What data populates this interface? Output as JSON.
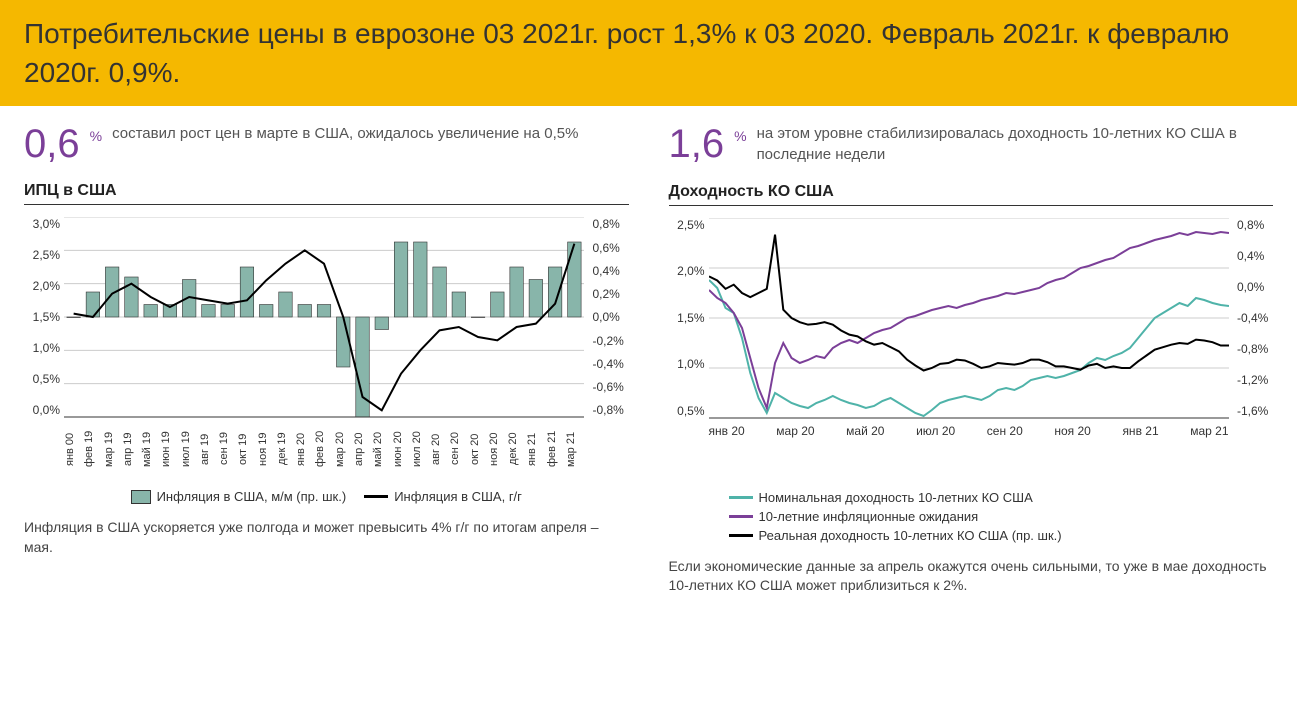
{
  "header": "Потребительские цены в еврозоне 03 2021г. рост 1,3% к 03 2020. Февраль 2021г. к февралю 2020г. 0,9%.",
  "left": {
    "stat_num": "0,6",
    "stat_pct": "%",
    "stat_text": "составил рост цен в марте в США, ожидалось увеличение на 0,5%",
    "chart_title": "ИПЦ в США",
    "legend1": "Инфляция в США, м/м (пр. шк.)",
    "legend2": "Инфляция в США, г/г",
    "footnote": "Инфляция в США ускоряется уже полгода и может превысить 4% г/г по итогам апреля – мая.",
    "chart": {
      "type": "bar+line",
      "bar_color": "#88b5aa",
      "bar_border": "#333333",
      "line_color": "#000000",
      "line_width": 2,
      "grid_color": "#cccccc",
      "xlabels": [
        "янв 00",
        "фев 19",
        "мар 19",
        "апр 19",
        "май 19",
        "июн 19",
        "июл 19",
        "авг 19",
        "сен 19",
        "окт 19",
        "ноя 19",
        "дек 19",
        "янв 20",
        "фев 20",
        "мар 20",
        "апр 20",
        "май 20",
        "июн 20",
        "июл 20",
        "авг 20",
        "сен 20",
        "окт 20",
        "ноя 20",
        "дек 20",
        "янв 21",
        "фев 21",
        "мар 21"
      ],
      "left_ticks": [
        "3,0%",
        "2,5%",
        "2,0%",
        "1,5%",
        "1,0%",
        "0,5%",
        "0,0%"
      ],
      "left_min": 0.0,
      "left_max": 3.0,
      "right_ticks": [
        "0,8%",
        "0,6%",
        "0,4%",
        "0,2%",
        "0,0%",
        "-0,2%",
        "-0,4%",
        "-0,6%",
        "-0,8%"
      ],
      "right_min": -0.8,
      "right_max": 0.8,
      "bars": [
        0.0,
        0.2,
        0.4,
        0.32,
        0.1,
        0.1,
        0.3,
        0.1,
        0.1,
        0.4,
        0.1,
        0.2,
        0.1,
        0.1,
        -0.4,
        -0.8,
        -0.1,
        0.6,
        0.6,
        0.4,
        0.2,
        0.0,
        0.2,
        0.4,
        0.3,
        0.4,
        0.6
      ],
      "line": [
        1.55,
        1.5,
        1.85,
        2.0,
        1.8,
        1.65,
        1.8,
        1.75,
        1.7,
        1.75,
        2.05,
        2.3,
        2.5,
        2.3,
        1.5,
        0.3,
        0.1,
        0.65,
        1.0,
        1.3,
        1.35,
        1.2,
        1.15,
        1.35,
        1.4,
        1.7,
        2.6
      ]
    }
  },
  "right": {
    "stat_num": "1,6",
    "stat_pct": "%",
    "stat_text": "на этом уровне стабилизировалась доходность 10-летних КО США в последние недели",
    "chart_title": "Доходность КО США",
    "legend1": "Номинальная доходность 10-летних КО США",
    "legend2": "10-летние инфляционные ожидания",
    "legend3": "Реальная доходность 10-летних КО США (пр. шк.)",
    "footnote": "Если экономические данные за апрель окажутся очень сильными, то уже в мае доходность 10-летних КО США может приблизиться к 2%.",
    "chart": {
      "type": "line",
      "colors": {
        "nominal": "#4fb3a9",
        "inflation": "#7b3f98",
        "real": "#000000"
      },
      "line_width": 2,
      "grid_color": "#cccccc",
      "xlabels": [
        "янв 20",
        "мар 20",
        "май 20",
        "июл 20",
        "сен 20",
        "ноя 20",
        "янв 21",
        "мар 21"
      ],
      "left_ticks": [
        "2,5%",
        "2,0%",
        "1,5%",
        "1,0%",
        "0,5%"
      ],
      "left_min": 0.5,
      "left_max": 2.5,
      "right_ticks": [
        "0,8%",
        "0,4%",
        "0,0%",
        "-0,4%",
        "-0,8%",
        "-1,2%",
        "-1,6%"
      ],
      "right_min": -1.6,
      "right_max": 0.8,
      "n": 64,
      "nominal": [
        1.88,
        1.8,
        1.6,
        1.55,
        1.3,
        0.95,
        0.7,
        0.55,
        0.75,
        0.7,
        0.65,
        0.62,
        0.6,
        0.65,
        0.68,
        0.72,
        0.68,
        0.65,
        0.63,
        0.6,
        0.62,
        0.67,
        0.7,
        0.65,
        0.6,
        0.55,
        0.52,
        0.58,
        0.65,
        0.68,
        0.7,
        0.72,
        0.7,
        0.68,
        0.72,
        0.78,
        0.8,
        0.78,
        0.82,
        0.88,
        0.9,
        0.92,
        0.9,
        0.92,
        0.95,
        0.98,
        1.05,
        1.1,
        1.08,
        1.12,
        1.15,
        1.2,
        1.3,
        1.4,
        1.5,
        1.55,
        1.6,
        1.65,
        1.62,
        1.7,
        1.68,
        1.65,
        1.63,
        1.62
      ],
      "inflation": [
        1.78,
        1.7,
        1.65,
        1.55,
        1.4,
        1.1,
        0.8,
        0.6,
        1.05,
        1.25,
        1.1,
        1.05,
        1.08,
        1.12,
        1.1,
        1.2,
        1.25,
        1.28,
        1.25,
        1.3,
        1.35,
        1.38,
        1.4,
        1.45,
        1.5,
        1.52,
        1.55,
        1.58,
        1.6,
        1.62,
        1.6,
        1.63,
        1.65,
        1.68,
        1.7,
        1.72,
        1.75,
        1.74,
        1.76,
        1.78,
        1.8,
        1.85,
        1.88,
        1.9,
        1.95,
        2.0,
        2.02,
        2.05,
        2.08,
        2.1,
        2.15,
        2.2,
        2.22,
        2.25,
        2.28,
        2.3,
        2.32,
        2.35,
        2.33,
        2.36,
        2.35,
        2.34,
        2.36,
        2.35
      ],
      "real": [
        0.1,
        0.05,
        -0.05,
        0.0,
        -0.1,
        -0.15,
        -0.1,
        -0.05,
        0.6,
        -0.3,
        -0.4,
        -0.45,
        -0.48,
        -0.47,
        -0.45,
        -0.48,
        -0.55,
        -0.6,
        -0.62,
        -0.68,
        -0.72,
        -0.7,
        -0.75,
        -0.8,
        -0.9,
        -0.97,
        -1.03,
        -1.0,
        -0.95,
        -0.94,
        -0.9,
        -0.91,
        -0.95,
        -1.0,
        -0.98,
        -0.94,
        -0.95,
        -0.96,
        -0.94,
        -0.9,
        -0.9,
        -0.93,
        -0.98,
        -0.98,
        -1.0,
        -1.02,
        -0.97,
        -0.95,
        -1.0,
        -0.98,
        -1.0,
        -1.0,
        -0.92,
        -0.85,
        -0.78,
        -0.75,
        -0.72,
        -0.7,
        -0.71,
        -0.66,
        -0.67,
        -0.69,
        -0.73,
        -0.73
      ]
    }
  }
}
